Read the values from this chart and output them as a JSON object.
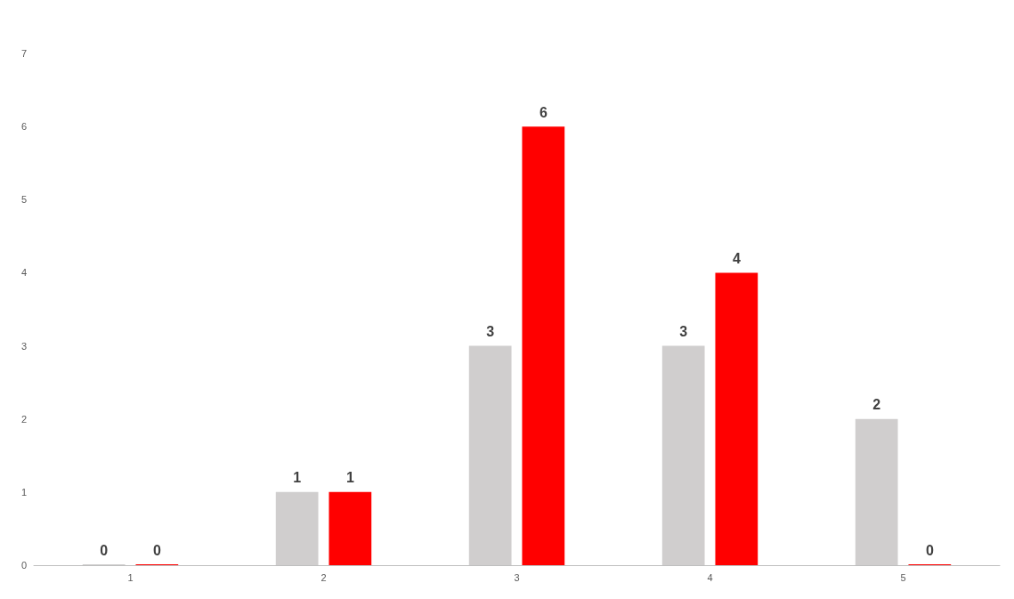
{
  "chart_data": {
    "type": "bar",
    "categories": [
      "1",
      "2",
      "3",
      "4",
      "5"
    ],
    "series": [
      {
        "color": "#d0cece",
        "values": [
          0,
          1,
          3,
          3,
          2
        ]
      },
      {
        "color": "#ff0000",
        "values": [
          0,
          1,
          6,
          4,
          0
        ]
      }
    ],
    "ylim": [
      0,
      7
    ],
    "yticks": [
      0,
      1,
      2,
      3,
      4,
      5,
      6,
      7
    ],
    "grid": false,
    "data_labels": true
  }
}
